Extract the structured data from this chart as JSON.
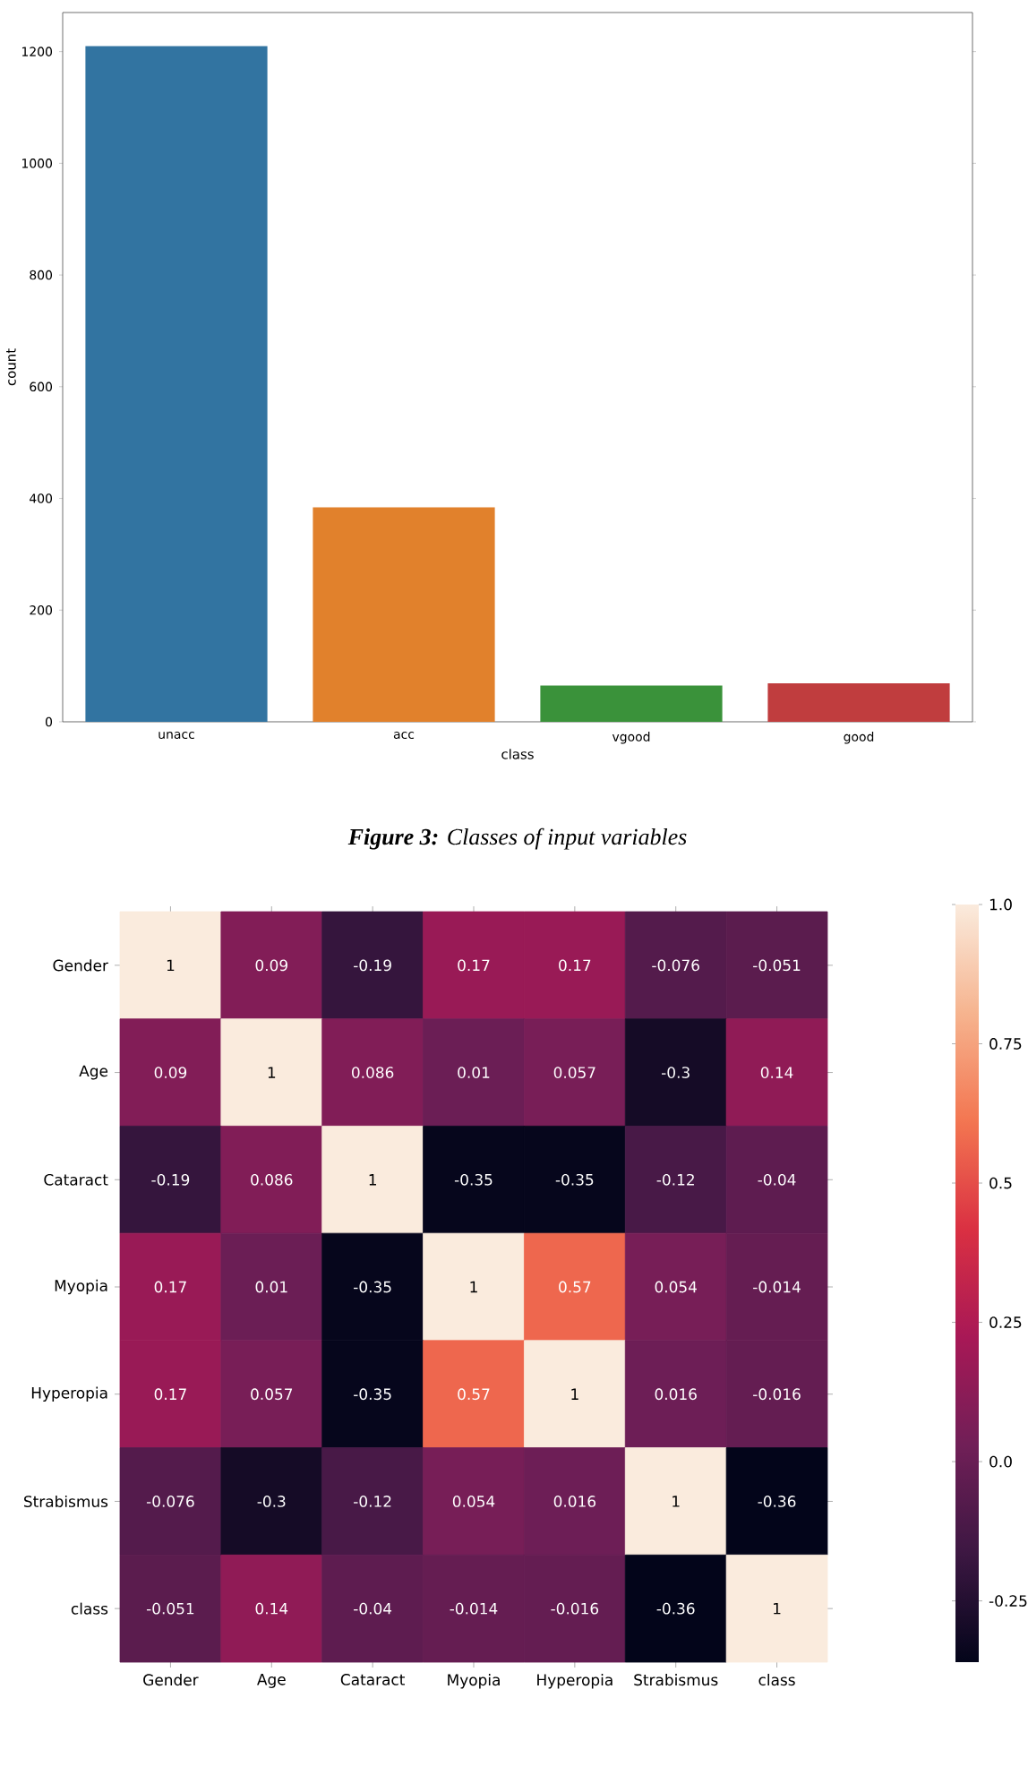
{
  "chart_data": [
    {
      "type": "bar",
      "categories": [
        "unacc",
        "acc",
        "vgood",
        "good"
      ],
      "values": [
        1210,
        384,
        65,
        69
      ],
      "colors": [
        "#3274a1",
        "#e1812c",
        "#3a923a",
        "#c03d3e"
      ],
      "xlabel": "class",
      "ylabel": "count",
      "ylim": [
        0,
        1270
      ],
      "yticks": [
        0,
        200,
        400,
        600,
        800,
        1000,
        1200
      ],
      "annotations": [
        "**Figure 3:** Classes of input variables"
      ]
    },
    {
      "type": "heatmap",
      "categories": [
        "Gender",
        "Age",
        "Cataract",
        "Myopia",
        "Hyperopia",
        "Strabismus",
        "class"
      ],
      "y_categories": [
        "Gender",
        "Age",
        "Cataract",
        "Myopia",
        "Hyperopia",
        "Strabismus",
        "class"
      ],
      "cells": [
        [
          1,
          0.09,
          -0.19,
          0.17,
          0.17,
          -0.076,
          -0.051
        ],
        [
          0.09,
          1,
          0.086,
          0.01,
          0.057,
          -0.3,
          0.14
        ],
        [
          -0.19,
          0.086,
          1,
          -0.35,
          -0.35,
          -0.12,
          -0.04
        ],
        [
          0.17,
          0.01,
          -0.35,
          1,
          0.57,
          0.054,
          -0.014
        ],
        [
          0.17,
          0.057,
          -0.35,
          0.57,
          1,
          0.016,
          -0.016
        ],
        [
          -0.076,
          -0.3,
          -0.12,
          0.054,
          0.016,
          1,
          -0.36
        ],
        [
          -0.051,
          0.14,
          -0.04,
          -0.014,
          -0.016,
          -0.36,
          1
        ]
      ],
      "data_labels": true,
      "clim": [
        -0.36,
        1
      ],
      "cticks": [
        {
          "value": 1,
          "label": "1.0"
        },
        0.75,
        0.5,
        0.25,
        {
          "value": 0,
          "label": "0.0"
        },
        -0.25
      ]
    }
  ]
}
